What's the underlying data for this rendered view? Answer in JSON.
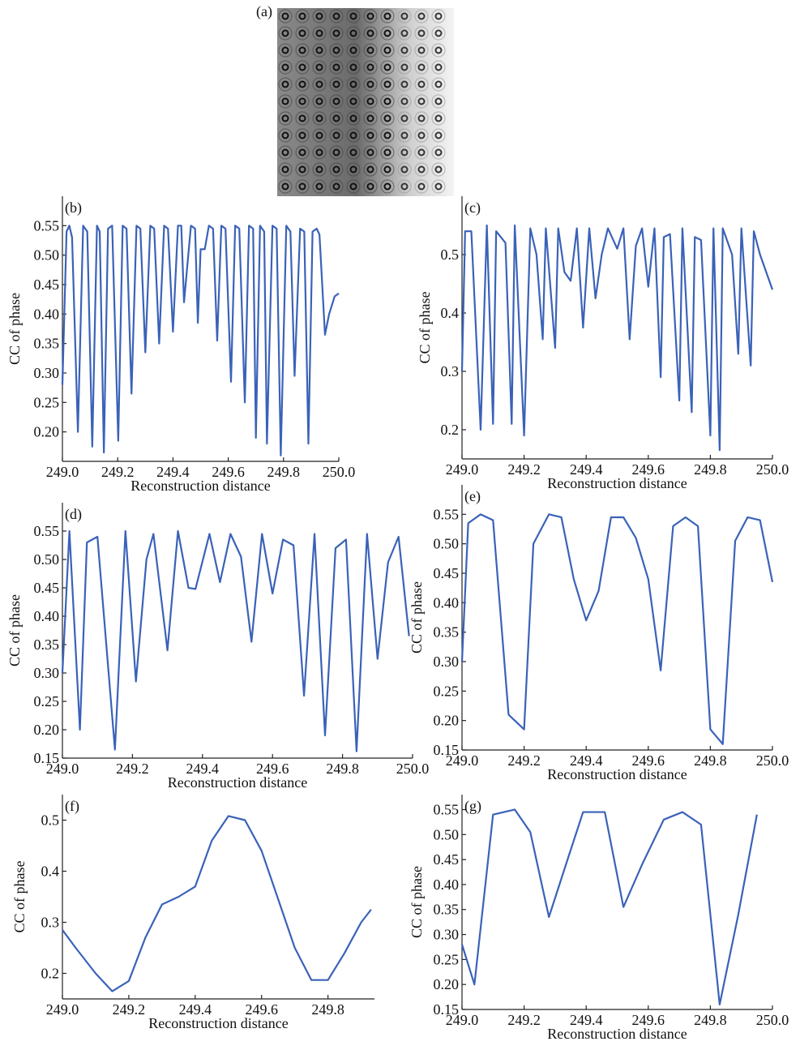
{
  "image_panel": {
    "label": "(a)"
  },
  "chart_data": [
    {
      "type": "line",
      "panel_label": "(b)",
      "xlabel": "Reconstruction distance",
      "ylabel": "CC of phase",
      "color": "#3a62b8",
      "x": [
        249.0,
        249.015,
        249.025,
        249.035,
        249.056,
        249.075,
        249.09,
        249.108,
        249.125,
        249.135,
        249.15,
        249.165,
        249.18,
        249.202,
        249.218,
        249.232,
        249.25,
        249.268,
        249.282,
        249.3,
        249.318,
        249.332,
        249.35,
        249.368,
        249.382,
        249.4,
        249.418,
        249.43,
        249.44,
        249.465,
        249.48,
        249.49,
        249.5,
        249.515,
        249.53,
        249.545,
        249.56,
        249.575,
        249.59,
        249.61,
        249.625,
        249.64,
        249.66,
        249.675,
        249.69,
        249.7,
        249.715,
        249.73,
        249.74,
        249.76,
        249.775,
        249.79,
        249.81,
        249.825,
        249.84,
        249.86,
        249.875,
        249.89,
        249.905,
        249.92,
        249.93,
        249.95,
        249.965,
        249.985,
        250.0
      ],
      "values": [
        0.28,
        0.54,
        0.55,
        0.53,
        0.2,
        0.55,
        0.54,
        0.175,
        0.55,
        0.54,
        0.165,
        0.545,
        0.55,
        0.185,
        0.55,
        0.545,
        0.265,
        0.55,
        0.545,
        0.335,
        0.55,
        0.545,
        0.35,
        0.55,
        0.545,
        0.37,
        0.55,
        0.55,
        0.42,
        0.55,
        0.545,
        0.385,
        0.51,
        0.51,
        0.55,
        0.545,
        0.355,
        0.55,
        0.545,
        0.285,
        0.55,
        0.545,
        0.25,
        0.55,
        0.545,
        0.19,
        0.55,
        0.54,
        0.18,
        0.55,
        0.545,
        0.16,
        0.55,
        0.54,
        0.295,
        0.545,
        0.54,
        0.18,
        0.54,
        0.545,
        0.535,
        0.365,
        0.4,
        0.43,
        0.435
      ],
      "xlim": [
        249.0,
        250.0
      ],
      "ylim": [
        0.15,
        0.6
      ],
      "xticks": [
        {
          "value": 249.0,
          "label": "249.0"
        },
        249.2,
        249.4,
        249.6,
        249.8,
        {
          "value": 250.0,
          "label": "250.0"
        }
      ],
      "yticks": [
        {
          "value": 0.2,
          "label": "0.20"
        },
        0.25,
        {
          "value": 0.3,
          "label": "0.30"
        },
        0.35,
        {
          "value": 0.4,
          "label": "0.40"
        },
        0.45,
        {
          "value": 0.5,
          "label": "0.50"
        },
        0.55
      ]
    },
    {
      "type": "line",
      "panel_label": "(c)",
      "xlabel": "Reconstruction distance",
      "ylabel": "CC of phase",
      "color": "#3a62b8",
      "x": [
        249.0,
        249.01,
        249.03,
        249.06,
        249.08,
        249.1,
        249.11,
        249.14,
        249.16,
        249.17,
        249.2,
        249.22,
        249.24,
        249.26,
        249.27,
        249.3,
        249.31,
        249.33,
        249.35,
        249.37,
        249.39,
        249.41,
        249.43,
        249.45,
        249.47,
        249.5,
        249.52,
        249.54,
        249.56,
        249.58,
        249.6,
        249.62,
        249.64,
        249.65,
        249.67,
        249.7,
        249.71,
        249.74,
        249.75,
        249.77,
        249.8,
        249.81,
        249.83,
        249.84,
        249.87,
        249.89,
        249.9,
        249.93,
        249.94,
        249.96,
        250.0
      ],
      "values": [
        0.3,
        0.54,
        0.54,
        0.2,
        0.55,
        0.21,
        0.54,
        0.52,
        0.21,
        0.55,
        0.19,
        0.545,
        0.5,
        0.355,
        0.545,
        0.34,
        0.545,
        0.47,
        0.455,
        0.545,
        0.375,
        0.545,
        0.425,
        0.5,
        0.545,
        0.51,
        0.545,
        0.355,
        0.515,
        0.545,
        0.445,
        0.545,
        0.29,
        0.53,
        0.535,
        0.25,
        0.545,
        0.23,
        0.53,
        0.525,
        0.19,
        0.545,
        0.165,
        0.545,
        0.5,
        0.33,
        0.545,
        0.31,
        0.54,
        0.5,
        0.44
      ],
      "xlim": [
        249.0,
        250.0
      ],
      "ylim": [
        0.15,
        0.6
      ],
      "xticks": [
        {
          "value": 249.0,
          "label": "249.0"
        },
        249.2,
        249.4,
        249.6,
        249.8,
        {
          "value": 250.0,
          "label": "250.0"
        }
      ],
      "yticks": [
        0.2,
        0.3,
        0.4,
        0.5
      ]
    },
    {
      "type": "line",
      "panel_label": "(d)",
      "xlabel": "Reconstruction distance",
      "ylabel": "CC of phase",
      "color": "#3a62b8",
      "x": [
        249.0,
        249.02,
        249.05,
        249.07,
        249.1,
        249.15,
        249.18,
        249.21,
        249.24,
        249.26,
        249.3,
        249.33,
        249.36,
        249.38,
        249.42,
        249.45,
        249.48,
        249.51,
        249.54,
        249.57,
        249.6,
        249.63,
        249.66,
        249.69,
        249.72,
        249.75,
        249.78,
        249.81,
        249.84,
        249.87,
        249.9,
        249.93,
        249.96,
        249.99
      ],
      "values": [
        0.3,
        0.55,
        0.2,
        0.53,
        0.54,
        0.165,
        0.55,
        0.285,
        0.5,
        0.545,
        0.34,
        0.55,
        0.45,
        0.448,
        0.545,
        0.46,
        0.545,
        0.505,
        0.355,
        0.545,
        0.44,
        0.535,
        0.525,
        0.26,
        0.545,
        0.19,
        0.52,
        0.535,
        0.162,
        0.545,
        0.325,
        0.495,
        0.54,
        0.365
      ],
      "xlim": [
        249.0,
        250.0
      ],
      "ylim": [
        0.15,
        0.6
      ],
      "xticks": [
        {
          "value": 249.0,
          "label": "249.0"
        },
        249.2,
        249.4,
        249.6,
        249.8,
        {
          "value": 250.0,
          "label": "250.0"
        }
      ],
      "yticks": [
        0.15,
        {
          "value": 0.2,
          "label": "0.20"
        },
        0.25,
        {
          "value": 0.3,
          "label": "0.30"
        },
        0.35,
        {
          "value": 0.4,
          "label": "0.40"
        },
        0.45,
        {
          "value": 0.5,
          "label": "0.50"
        },
        0.55
      ]
    },
    {
      "type": "line",
      "panel_label": "(e)",
      "xlabel": "Reconstruction distance",
      "ylabel": "CC of phase",
      "color": "#3a62b8",
      "x": [
        249.0,
        249.02,
        249.06,
        249.1,
        249.15,
        249.2,
        249.23,
        249.28,
        249.32,
        249.36,
        249.4,
        249.44,
        249.48,
        249.52,
        249.56,
        249.6,
        249.64,
        249.68,
        249.72,
        249.76,
        249.8,
        249.84,
        249.88,
        249.92,
        249.96,
        250.0
      ],
      "values": [
        0.3,
        0.535,
        0.55,
        0.54,
        0.21,
        0.185,
        0.5,
        0.55,
        0.545,
        0.44,
        0.37,
        0.42,
        0.545,
        0.545,
        0.51,
        0.44,
        0.285,
        0.53,
        0.545,
        0.53,
        0.185,
        0.16,
        0.505,
        0.545,
        0.54,
        0.435
      ],
      "xlim": [
        249.0,
        250.0
      ],
      "ylim": [
        0.15,
        0.6
      ],
      "xticks": [
        {
          "value": 249.0,
          "label": "249.0"
        },
        249.2,
        249.4,
        249.6,
        249.8,
        {
          "value": 250.0,
          "label": "250.0"
        }
      ],
      "yticks": [
        0.15,
        {
          "value": 0.2,
          "label": "0.20"
        },
        0.25,
        {
          "value": 0.3,
          "label": "0.30"
        },
        0.35,
        {
          "value": 0.4,
          "label": "0.40"
        },
        0.45,
        {
          "value": 0.5,
          "label": "0.50"
        },
        0.55
      ]
    },
    {
      "type": "line",
      "panel_label": "(f)",
      "xlabel": "Reconstruction distance",
      "ylabel": "CC of phase",
      "color": "#3a62b8",
      "x": [
        249.0,
        249.04,
        249.1,
        249.15,
        249.2,
        249.25,
        249.3,
        249.35,
        249.4,
        249.45,
        249.5,
        249.55,
        249.6,
        249.65,
        249.7,
        249.75,
        249.8,
        249.85,
        249.9,
        249.93
      ],
      "values": [
        0.285,
        0.25,
        0.2,
        0.165,
        0.185,
        0.27,
        0.335,
        0.35,
        0.37,
        0.46,
        0.508,
        0.5,
        0.44,
        0.345,
        0.25,
        0.187,
        0.187,
        0.24,
        0.3,
        0.325
      ],
      "xlim": [
        249.0,
        249.94
      ],
      "ylim": [
        0.15,
        0.55
      ],
      "xticks": [
        {
          "value": 249.0,
          "label": "249.0"
        },
        249.2,
        249.4,
        249.6,
        249.8
      ],
      "yticks": [
        0.2,
        0.3,
        0.4,
        0.5
      ]
    },
    {
      "type": "line",
      "panel_label": "(g)",
      "xlabel": "Reconstruction distance",
      "ylabel": "CC of phase",
      "color": "#3a62b8",
      "x": [
        249.0,
        249.04,
        249.1,
        249.17,
        249.22,
        249.28,
        249.34,
        249.39,
        249.46,
        249.52,
        249.58,
        249.65,
        249.71,
        249.77,
        249.83,
        249.89,
        249.95
      ],
      "values": [
        0.28,
        0.2,
        0.54,
        0.55,
        0.505,
        0.335,
        0.45,
        0.545,
        0.545,
        0.355,
        0.44,
        0.53,
        0.545,
        0.52,
        0.16,
        0.34,
        0.54
      ],
      "xlim": [
        249.0,
        250.0
      ],
      "ylim": [
        0.15,
        0.58
      ],
      "xticks": [
        {
          "value": 249.0,
          "label": "249.0"
        },
        249.2,
        249.4,
        249.6,
        249.8,
        {
          "value": 250.0,
          "label": "250.0"
        }
      ],
      "yticks": [
        0.15,
        {
          "value": 0.2,
          "label": "0.20"
        },
        0.25,
        {
          "value": 0.3,
          "label": "0.30"
        },
        0.35,
        {
          "value": 0.4,
          "label": "0.40"
        },
        0.45,
        {
          "value": 0.5,
          "label": "0.50"
        },
        0.55
      ]
    }
  ]
}
